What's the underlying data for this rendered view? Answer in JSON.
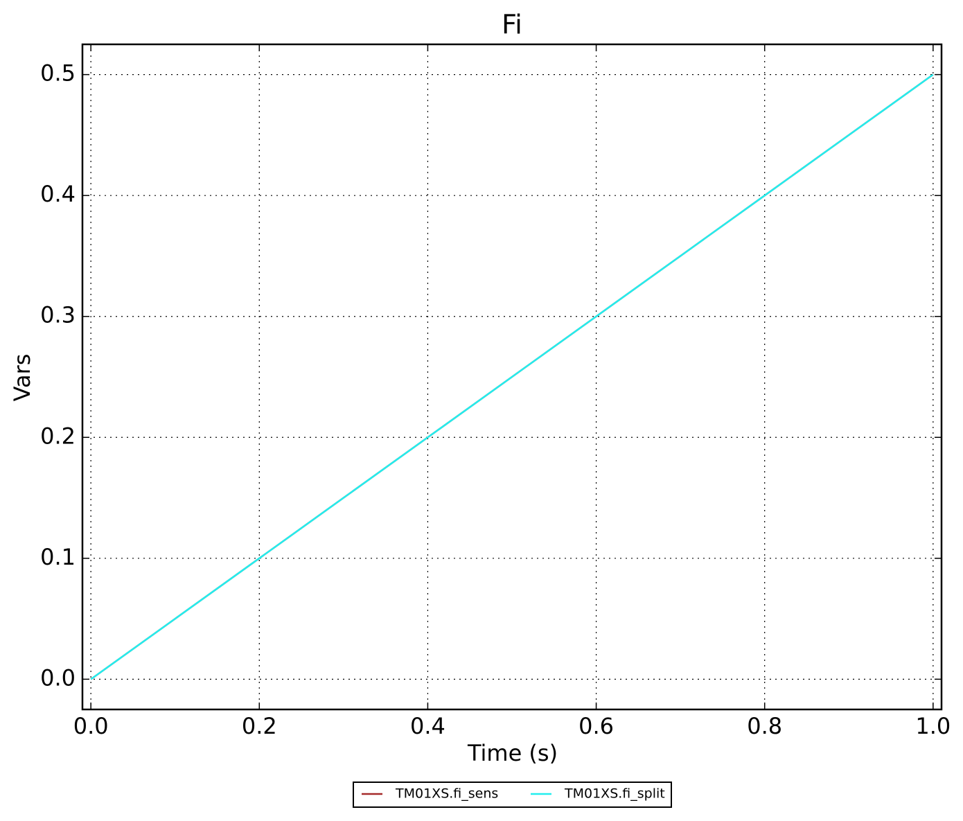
{
  "chart_data": {
    "type": "line",
    "title": "Fi",
    "xlabel": "Time (s)",
    "ylabel": "Vars",
    "x": [
      0,
      0.1,
      0.2,
      0.3,
      0.4,
      0.5,
      0.6,
      0.7,
      0.8,
      0.9,
      1
    ],
    "series": [
      {
        "name": "TM01XS.fi_sens",
        "color": "#a52a2a",
        "values": [
          0,
          0.05,
          0.1,
          0.15,
          0.2,
          0.25,
          0.3,
          0.35,
          0.4,
          0.45,
          0.5
        ]
      },
      {
        "name": "TM01XS.fi_split",
        "color": "#22eeee",
        "values": [
          0,
          0.05,
          0.1,
          0.15,
          0.2,
          0.25,
          0.3,
          0.35,
          0.4,
          0.45,
          0.5
        ]
      }
    ],
    "xlim": [
      -0.01,
      1.01
    ],
    "ylim": [
      -0.025,
      0.525
    ],
    "xticks": [
      {
        "value": 0,
        "label": "0.0"
      },
      0.2,
      0.4,
      0.6,
      0.8,
      {
        "value": 1,
        "label": "1.0"
      }
    ],
    "yticks": [
      {
        "value": 0,
        "label": "0.0"
      },
      0.1,
      0.2,
      0.3,
      0.4,
      0.5
    ],
    "grid": true,
    "legend": "bottom"
  }
}
